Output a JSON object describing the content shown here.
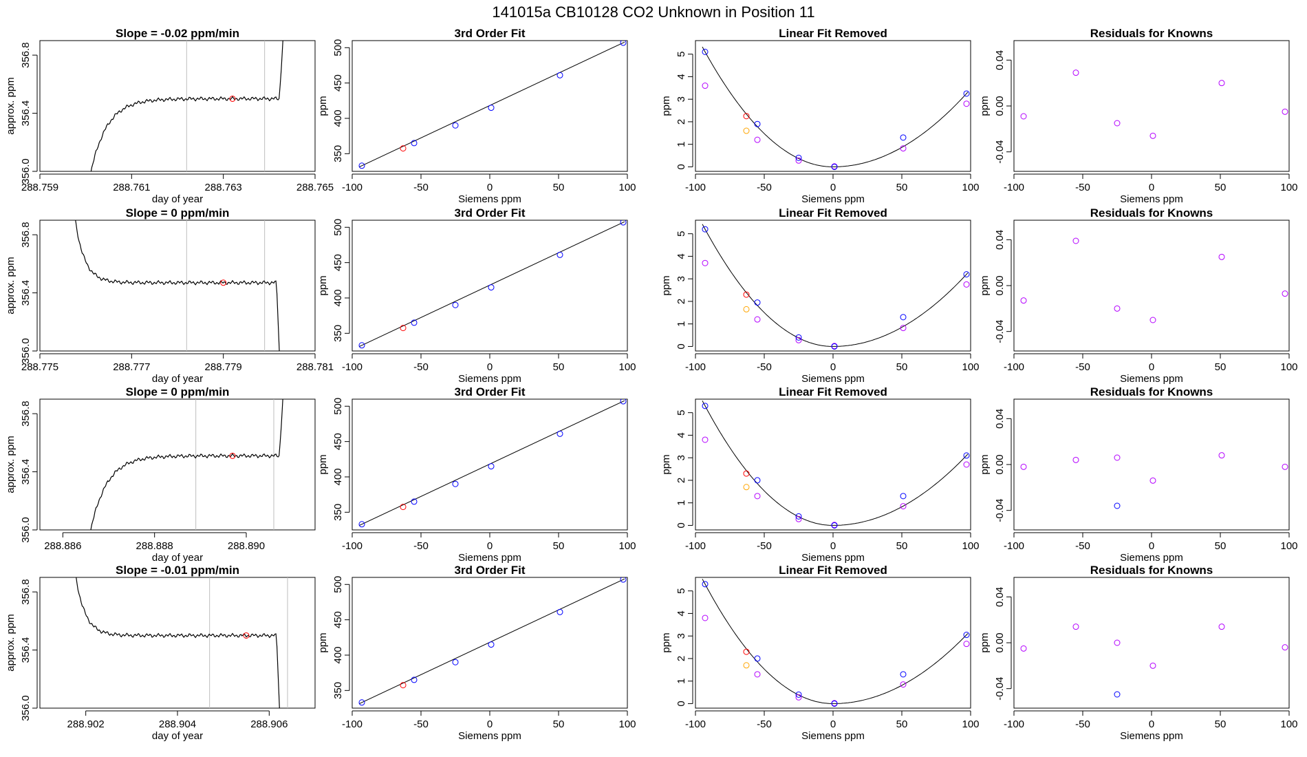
{
  "figure_title": "141015a     CB10128    CO2 Unknown in Position  11",
  "colors": {
    "fit_line": "#000000",
    "known": "#0000ff",
    "unknown": "#ff0000",
    "alt": "#b400ff",
    "orange": "#ffa500",
    "trace": "#000000",
    "vline": "#bebebe"
  },
  "chart_data": [
    {
      "type": "line",
      "title": "Slope =  -0.02  ppm/min",
      "xlabel": "day of year",
      "ylabel": "approx. ppm",
      "xlim": [
        288.759,
        288.765
      ],
      "ylim": [
        356.0,
        356.9
      ],
      "xticks": [
        "288.759",
        "288.761",
        "288.763",
        "288.765"
      ],
      "yticks": [
        "356.0",
        "356.4",
        "356.8"
      ],
      "vlines": [
        288.7622,
        288.7639
      ],
      "marker": [
        288.7632,
        356.5
      ],
      "trace_shape": "rise"
    },
    {
      "type": "scatter",
      "title": "3rd Order Fit",
      "xlabel": "Siemens ppm",
      "ylabel": "ppm",
      "xlim": [
        -100,
        100
      ],
      "ylim": [
        325,
        510
      ],
      "xticks": [
        "-100",
        "-50",
        "0",
        "50",
        "100"
      ],
      "yticks": [
        "350",
        "400",
        "450",
        "500"
      ],
      "knowns": [
        [
          -93,
          333
        ],
        [
          -55,
          365
        ],
        [
          -25,
          390
        ],
        [
          1,
          415
        ],
        [
          51,
          461
        ],
        [
          97,
          507
        ]
      ],
      "unknown": [
        [
          -63,
          357.5
        ]
      ]
    },
    {
      "type": "scatter",
      "title": "Linear Fit Removed",
      "xlabel": "Siemens ppm",
      "ylabel": "ppm",
      "xlim": [
        -100,
        100
      ],
      "ylim": [
        -0.2,
        5.6
      ],
      "xticks": [
        "-100",
        "-50",
        "0",
        "50",
        "100"
      ],
      "yticks": [
        "0",
        "1",
        "2",
        "3",
        "4",
        "5"
      ],
      "knowns": [
        [
          -93,
          5.1
        ],
        [
          -55,
          1.9
        ],
        [
          -25,
          0.4
        ],
        [
          1,
          0.0
        ],
        [
          51,
          1.3
        ],
        [
          97,
          3.25
        ]
      ],
      "alt": [
        [
          -93,
          3.6
        ],
        [
          -55,
          1.2
        ],
        [
          -25,
          0.28
        ],
        [
          1,
          0.02
        ],
        [
          51,
          0.82
        ],
        [
          97,
          2.8
        ]
      ],
      "unknown": [
        [
          -63,
          2.25
        ]
      ],
      "orange": [
        [
          -63,
          1.6
        ]
      ]
    },
    {
      "type": "scatter",
      "title": "Residuals for Knowns",
      "xlabel": "Siemens ppm",
      "ylabel": "ppm",
      "xlim": [
        -100,
        100
      ],
      "ylim": [
        -0.057,
        0.057
      ],
      "xticks": [
        "-100",
        "-50",
        "0",
        "50",
        "100"
      ],
      "yticks": [
        "-0.04",
        "0.00",
        "0.04"
      ],
      "alt": [
        [
          -93,
          -0.009
        ],
        [
          -55,
          0.029
        ],
        [
          -25,
          -0.015
        ],
        [
          1,
          -0.026
        ],
        [
          51,
          0.02
        ],
        [
          97,
          -0.005
        ]
      ]
    },
    {
      "type": "line",
      "title": "Slope =  0  ppm/min",
      "xlabel": "day of year",
      "ylabel": "approx. ppm",
      "xlim": [
        288.775,
        288.781
      ],
      "ylim": [
        356.0,
        356.9
      ],
      "xticks": [
        "288.775",
        "288.777",
        "288.779",
        "288.781"
      ],
      "yticks": [
        "356.0",
        "356.4",
        "356.8"
      ],
      "vlines": [
        288.7782,
        288.7799
      ],
      "marker": [
        288.779,
        356.47
      ],
      "trace_shape": "fall"
    },
    {
      "type": "scatter",
      "title": "3rd Order Fit",
      "xlabel": "Siemens ppm",
      "ylabel": "ppm",
      "xlim": [
        -100,
        100
      ],
      "ylim": [
        325,
        510
      ],
      "xticks": [
        "-100",
        "-50",
        "0",
        "50",
        "100"
      ],
      "yticks": [
        "350",
        "400",
        "450",
        "500"
      ],
      "knowns": [
        [
          -93,
          333
        ],
        [
          -55,
          365
        ],
        [
          -25,
          390
        ],
        [
          1,
          415
        ],
        [
          51,
          461
        ],
        [
          97,
          507
        ]
      ],
      "unknown": [
        [
          -63,
          357.5
        ]
      ]
    },
    {
      "type": "scatter",
      "title": "Linear Fit Removed",
      "xlabel": "Siemens ppm",
      "ylabel": "ppm",
      "xlim": [
        -100,
        100
      ],
      "ylim": [
        -0.2,
        5.6
      ],
      "xticks": [
        "-100",
        "-50",
        "0",
        "50",
        "100"
      ],
      "yticks": [
        "0",
        "1",
        "2",
        "3",
        "4",
        "5"
      ],
      "knowns": [
        [
          -93,
          5.2
        ],
        [
          -55,
          1.95
        ],
        [
          -25,
          0.4
        ],
        [
          1,
          0.0
        ],
        [
          51,
          1.3
        ],
        [
          97,
          3.2
        ]
      ],
      "alt": [
        [
          -93,
          3.7
        ],
        [
          -55,
          1.2
        ],
        [
          -25,
          0.28
        ],
        [
          1,
          0.02
        ],
        [
          51,
          0.82
        ],
        [
          97,
          2.75
        ]
      ],
      "unknown": [
        [
          -63,
          2.3
        ]
      ],
      "orange": [
        [
          -63,
          1.65
        ]
      ]
    },
    {
      "type": "scatter",
      "title": "Residuals for Knowns",
      "xlabel": "Siemens ppm",
      "ylabel": "ppm",
      "xlim": [
        -100,
        100
      ],
      "ylim": [
        -0.057,
        0.057
      ],
      "xticks": [
        "-100",
        "-50",
        "0",
        "50",
        "100"
      ],
      "yticks": [
        "-0.04",
        "0.00",
        "0.04"
      ],
      "alt": [
        [
          -93,
          -0.013
        ],
        [
          -55,
          0.039
        ],
        [
          -25,
          -0.02
        ],
        [
          1,
          -0.03
        ],
        [
          51,
          0.025
        ],
        [
          97,
          -0.007
        ]
      ]
    },
    {
      "type": "line",
      "title": "Slope =  0  ppm/min",
      "xlabel": "day of year",
      "ylabel": "approx. ppm",
      "xlim": [
        288.8855,
        288.8915
      ],
      "ylim": [
        356.0,
        356.9
      ],
      "xticks": [
        "288.886",
        "288.888",
        "288.890"
      ],
      "yticks": [
        "356.0",
        "356.4",
        "356.8"
      ],
      "vlines": [
        288.8889,
        288.8906
      ],
      "marker": [
        288.8897,
        356.51
      ],
      "trace_shape": "rise"
    },
    {
      "type": "scatter",
      "title": "3rd Order Fit",
      "xlabel": "Siemens ppm",
      "ylabel": "ppm",
      "xlim": [
        -100,
        100
      ],
      "ylim": [
        325,
        510
      ],
      "xticks": [
        "-100",
        "-50",
        "0",
        "50",
        "100"
      ],
      "yticks": [
        "350",
        "400",
        "450",
        "500"
      ],
      "knowns": [
        [
          -93,
          333
        ],
        [
          -55,
          365
        ],
        [
          -25,
          390
        ],
        [
          1,
          415
        ],
        [
          51,
          461
        ],
        [
          97,
          507
        ]
      ],
      "unknown": [
        [
          -63,
          357.5
        ]
      ]
    },
    {
      "type": "scatter",
      "title": "Linear Fit Removed",
      "xlabel": "Siemens ppm",
      "ylabel": "ppm",
      "xlim": [
        -100,
        100
      ],
      "ylim": [
        -0.2,
        5.6
      ],
      "xticks": [
        "-100",
        "-50",
        "0",
        "50",
        "100"
      ],
      "yticks": [
        "0",
        "1",
        "2",
        "3",
        "4",
        "5"
      ],
      "knowns": [
        [
          -93,
          5.3
        ],
        [
          -55,
          2.0
        ],
        [
          -25,
          0.4
        ],
        [
          1,
          0.0
        ],
        [
          51,
          1.3
        ],
        [
          97,
          3.1
        ]
      ],
      "alt": [
        [
          -93,
          3.8
        ],
        [
          -55,
          1.3
        ],
        [
          -25,
          0.28
        ],
        [
          1,
          0.02
        ],
        [
          51,
          0.85
        ],
        [
          97,
          2.7
        ]
      ],
      "unknown": [
        [
          -63,
          2.3
        ]
      ],
      "orange": [
        [
          -63,
          1.7
        ]
      ]
    },
    {
      "type": "scatter",
      "title": "Residuals for Knowns",
      "xlabel": "Siemens ppm",
      "ylabel": "ppm",
      "xlim": [
        -100,
        100
      ],
      "ylim": [
        -0.057,
        0.057
      ],
      "xticks": [
        "-100",
        "-50",
        "0",
        "50",
        "100"
      ],
      "yticks": [
        "-0.04",
        "0.00",
        "0.04"
      ],
      "alt": [
        [
          -93,
          -0.002
        ],
        [
          -55,
          0.004
        ],
        [
          -25,
          0.006
        ],
        [
          1,
          -0.014
        ],
        [
          51,
          0.008
        ],
        [
          97,
          -0.002
        ]
      ],
      "knowns": [
        [
          -25,
          -0.036
        ]
      ]
    },
    {
      "type": "line",
      "title": "Slope =  -0.01  ppm/min",
      "xlabel": "day of year",
      "ylabel": "approx. ppm",
      "xlim": [
        288.901,
        288.907
      ],
      "ylim": [
        356.0,
        356.9
      ],
      "xticks": [
        "288.902",
        "288.904",
        "288.906"
      ],
      "yticks": [
        "356.0",
        "356.4",
        "356.8"
      ],
      "vlines": [
        288.9047,
        288.9064
      ],
      "marker": [
        288.9055,
        356.5
      ],
      "trace_shape": "fall"
    },
    {
      "type": "scatter",
      "title": "3rd Order Fit",
      "xlabel": "Siemens ppm",
      "ylabel": "ppm",
      "xlim": [
        -100,
        100
      ],
      "ylim": [
        325,
        510
      ],
      "xticks": [
        "-100",
        "-50",
        "0",
        "50",
        "100"
      ],
      "yticks": [
        "350",
        "400",
        "450",
        "500"
      ],
      "knowns": [
        [
          -93,
          333
        ],
        [
          -55,
          365
        ],
        [
          -25,
          390
        ],
        [
          1,
          415
        ],
        [
          51,
          461
        ],
        [
          97,
          507
        ]
      ],
      "unknown": [
        [
          -63,
          357.5
        ]
      ]
    },
    {
      "type": "scatter",
      "title": "Linear Fit Removed",
      "xlabel": "Siemens ppm",
      "ylabel": "ppm",
      "xlim": [
        -100,
        100
      ],
      "ylim": [
        -0.2,
        5.6
      ],
      "xticks": [
        "-100",
        "-50",
        "0",
        "50",
        "100"
      ],
      "yticks": [
        "0",
        "1",
        "2",
        "3",
        "4",
        "5"
      ],
      "knowns": [
        [
          -93,
          5.3
        ],
        [
          -55,
          2.0
        ],
        [
          -25,
          0.4
        ],
        [
          1,
          0.0
        ],
        [
          51,
          1.3
        ],
        [
          97,
          3.05
        ]
      ],
      "alt": [
        [
          -93,
          3.8
        ],
        [
          -55,
          1.3
        ],
        [
          -25,
          0.28
        ],
        [
          1,
          0.02
        ],
        [
          51,
          0.85
        ],
        [
          97,
          2.65
        ]
      ],
      "unknown": [
        [
          -63,
          2.3
        ]
      ],
      "orange": [
        [
          -63,
          1.7
        ]
      ]
    },
    {
      "type": "scatter",
      "title": "Residuals for Knowns",
      "xlabel": "Siemens ppm",
      "ylabel": "ppm",
      "xlim": [
        -100,
        100
      ],
      "ylim": [
        -0.057,
        0.057
      ],
      "xticks": [
        "-100",
        "-50",
        "0",
        "50",
        "100"
      ],
      "yticks": [
        "-0.04",
        "0.00",
        "0.04"
      ],
      "alt": [
        [
          -93,
          -0.005
        ],
        [
          -55,
          0.014
        ],
        [
          -25,
          0.0
        ],
        [
          1,
          -0.02
        ],
        [
          51,
          0.014
        ],
        [
          97,
          -0.004
        ]
      ],
      "knowns": [
        [
          -25,
          -0.045
        ]
      ]
    }
  ]
}
